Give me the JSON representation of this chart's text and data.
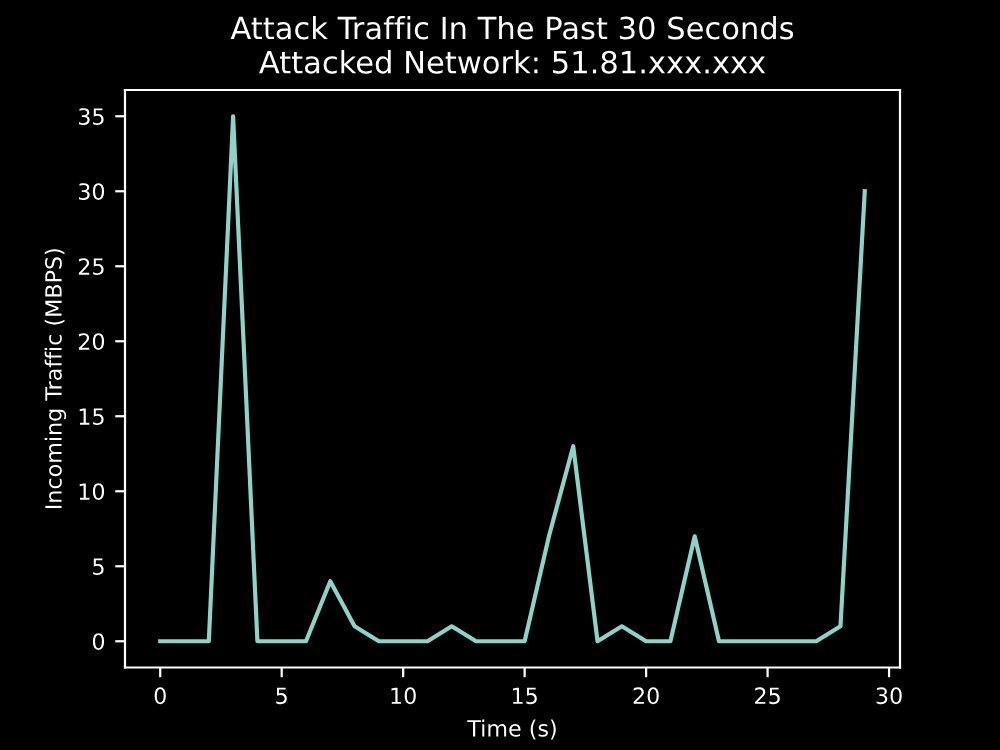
{
  "chart_data": {
    "type": "line",
    "title": "Attack Traffic In The Past 30 Seconds\nAttacked Network: 51.81.xxx.xxx",
    "xlabel": "Time (s)",
    "ylabel": "Incoming Traffic (MBPS)",
    "x": [
      0,
      1,
      2,
      3,
      4,
      5,
      6,
      7,
      8,
      9,
      10,
      11,
      12,
      13,
      14,
      15,
      16,
      17,
      18,
      19,
      20,
      21,
      22,
      23,
      24,
      25,
      26,
      27,
      28,
      29
    ],
    "series": [
      {
        "color": "#8dd3c7",
        "values": [
          0,
          0,
          0,
          35,
          0,
          0,
          0,
          4,
          1,
          0,
          0,
          0,
          1,
          0,
          0,
          0,
          7,
          13,
          0,
          1,
          0,
          0,
          7,
          0,
          0,
          0,
          0,
          0,
          1,
          30
        ]
      }
    ],
    "xlim": [
      -1.45,
      30.45
    ],
    "ylim": [
      -1.75,
      36.75
    ],
    "xticks": [
      0,
      5,
      10,
      15,
      20,
      25,
      30
    ],
    "yticks": [
      0,
      5,
      10,
      15,
      20,
      25,
      30,
      35
    ],
    "grid": false,
    "legend": false,
    "marker": "none",
    "line_style": "solid"
  }
}
